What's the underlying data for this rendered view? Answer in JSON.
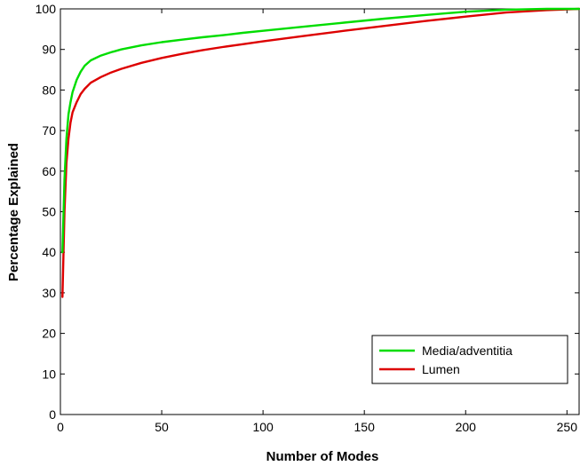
{
  "chart_data": {
    "type": "line",
    "title": "",
    "xlabel": "Number of Modes",
    "ylabel": "Percentage Explained",
    "xlim": [
      0,
      256
    ],
    "ylim": [
      0,
      100
    ],
    "x_ticks": [
      0,
      50,
      100,
      150,
      200,
      250
    ],
    "y_ticks": [
      0,
      10,
      20,
      30,
      40,
      50,
      60,
      70,
      80,
      90,
      100
    ],
    "grid": false,
    "legend_position": "bottom-right",
    "series": [
      {
        "name": "Media/adventitia",
        "color": "#00dd00",
        "points": [
          [
            1,
            40
          ],
          [
            2,
            58
          ],
          [
            3,
            68
          ],
          [
            4,
            74
          ],
          [
            5,
            77
          ],
          [
            6,
            79.5
          ],
          [
            8,
            82.5
          ],
          [
            10,
            84.5
          ],
          [
            12,
            86
          ],
          [
            15,
            87.3
          ],
          [
            20,
            88.5
          ],
          [
            25,
            89.3
          ],
          [
            30,
            90
          ],
          [
            40,
            91
          ],
          [
            50,
            91.8
          ],
          [
            60,
            92.4
          ],
          [
            70,
            93
          ],
          [
            80,
            93.5
          ],
          [
            90,
            94.1
          ],
          [
            100,
            94.6
          ],
          [
            120,
            95.6
          ],
          [
            140,
            96.6
          ],
          [
            160,
            97.6
          ],
          [
            180,
            98.5
          ],
          [
            200,
            99.3
          ],
          [
            220,
            99.8
          ],
          [
            240,
            100
          ],
          [
            256,
            100
          ]
        ]
      },
      {
        "name": "Lumen",
        "color": "#dd0000",
        "points": [
          [
            1,
            29
          ],
          [
            2,
            50
          ],
          [
            3,
            62
          ],
          [
            4,
            68
          ],
          [
            5,
            72
          ],
          [
            6,
            74.5
          ],
          [
            8,
            77
          ],
          [
            10,
            79
          ],
          [
            12,
            80.3
          ],
          [
            15,
            81.8
          ],
          [
            20,
            83.2
          ],
          [
            25,
            84.3
          ],
          [
            30,
            85.2
          ],
          [
            40,
            86.7
          ],
          [
            50,
            87.9
          ],
          [
            60,
            88.9
          ],
          [
            70,
            89.8
          ],
          [
            80,
            90.6
          ],
          [
            90,
            91.3
          ],
          [
            100,
            92
          ],
          [
            120,
            93.3
          ],
          [
            140,
            94.6
          ],
          [
            160,
            95.8
          ],
          [
            180,
            97
          ],
          [
            200,
            98.1
          ],
          [
            220,
            99.1
          ],
          [
            240,
            99.7
          ],
          [
            256,
            100
          ]
        ]
      }
    ]
  }
}
